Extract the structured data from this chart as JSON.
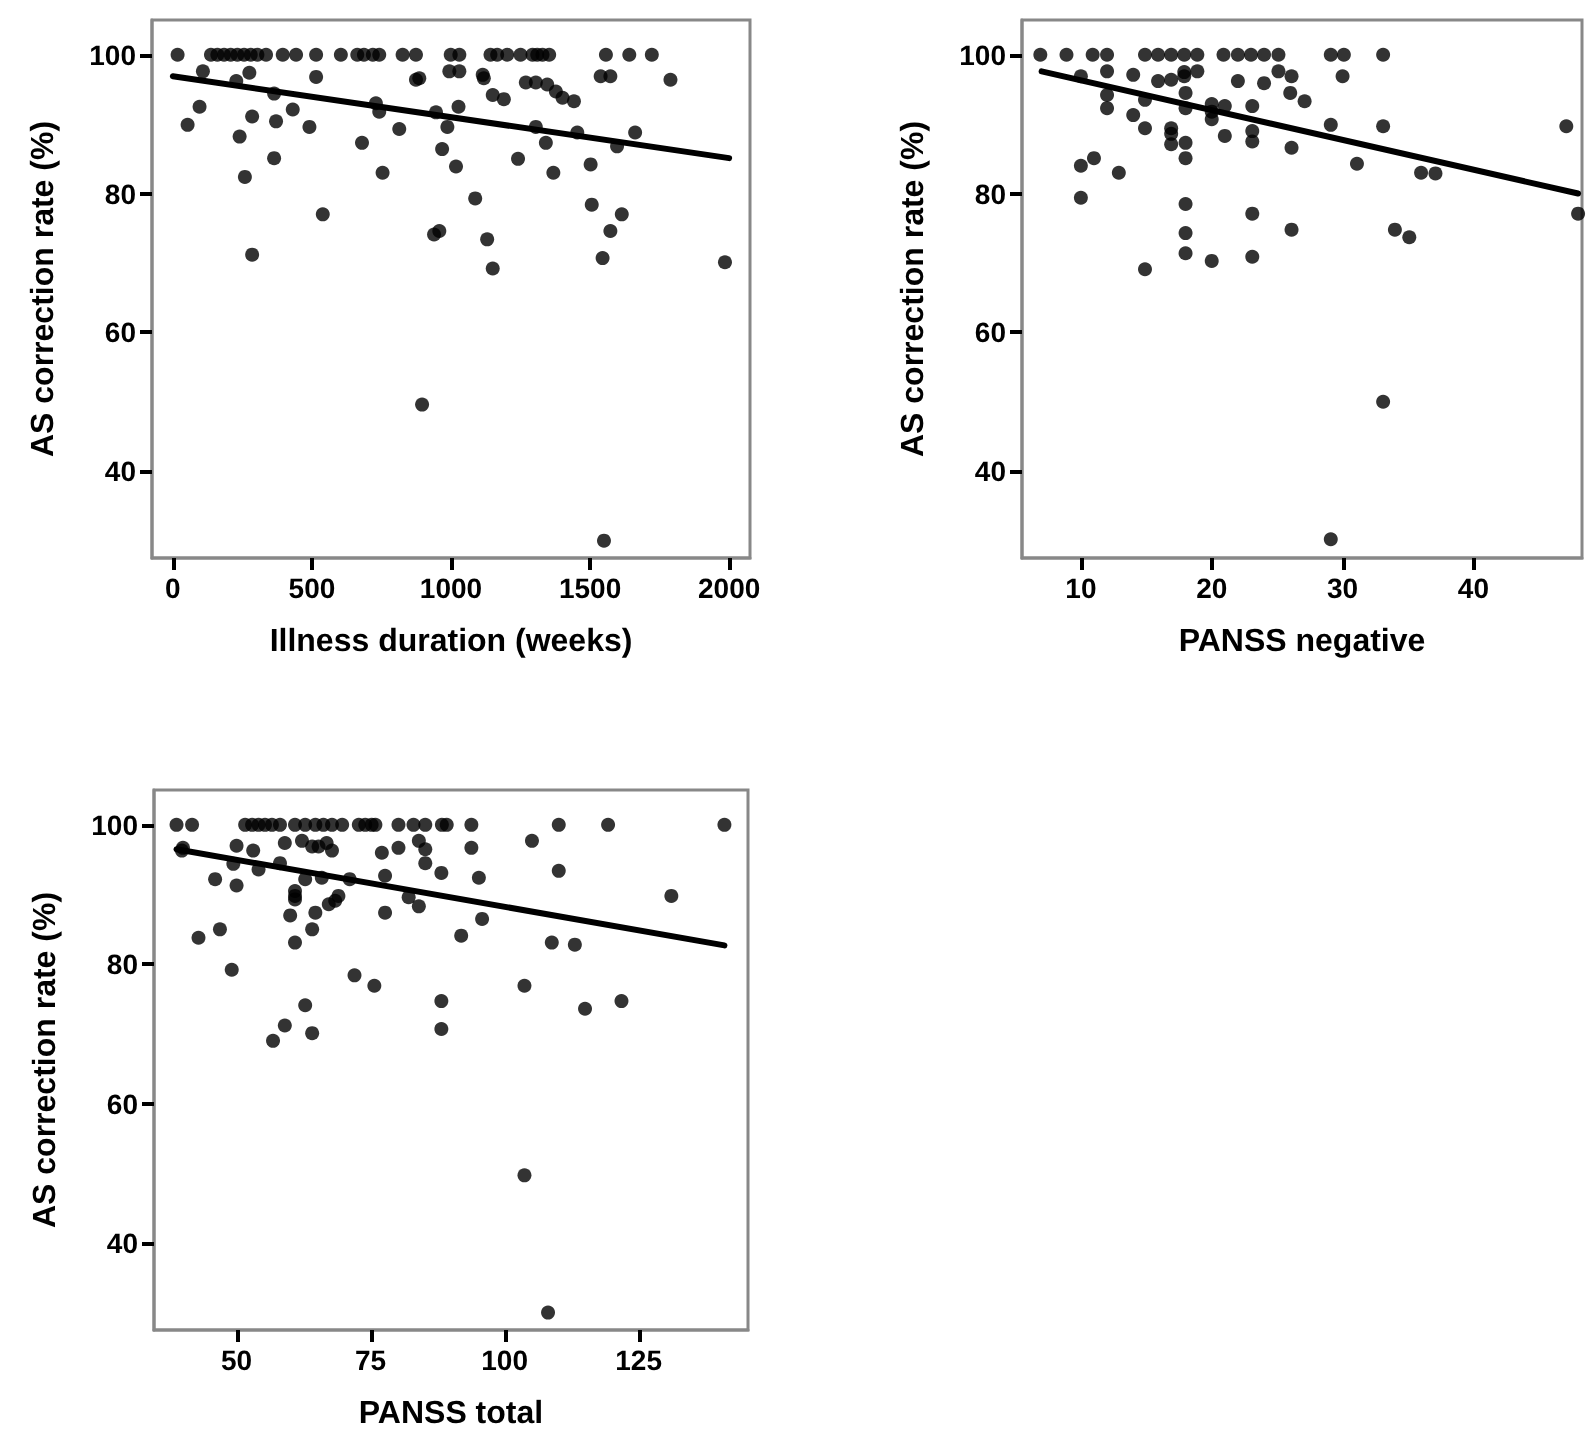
{
  "chart_data": [
    {
      "type": "scatter",
      "xlabel": "Illness duration (weeks)",
      "ylabel": "AS correction rate (%)",
      "xlim": [
        -75,
        2075
      ],
      "ylim": [
        27.5,
        105
      ],
      "xticks": [
        0,
        500,
        1000,
        1500,
        2000
      ],
      "yticks": [
        40,
        60,
        80,
        100
      ],
      "grid": false,
      "series": [
        {
          "marker": "circle",
          "color": "#000000",
          "x": [
            17,
            137,
            160,
            184,
            208,
            232,
            256,
            280,
            304,
            335,
            395,
            443,
            515,
            604,
            663,
            687,
            719,
            742,
            826,
            874,
            999,
            1030,
            1142,
            1166,
            1202,
            1250,
            1293,
            1310,
            1329,
            1353,
            1557,
            1641,
            1722,
            108,
            275,
            228,
            515,
            886,
            874,
            994,
            1030,
            1114,
            1118,
            1150,
            1190,
            1269,
            1305,
            1346,
            1377,
            1401,
            1442,
            1538,
            1573,
            1789,
            53,
            96,
            240,
            285,
            371,
            431,
            491,
            364,
            259,
            364,
            285,
            539,
            680,
            730,
            742,
            754,
            814,
            946,
            987,
            1027,
            968,
            1018,
            896,
            939,
            958,
            1087,
            1130,
            1150,
            1241,
            1305,
            1341,
            1368,
            1454,
            1502,
            1506,
            1545,
            1573,
            1614,
            1597,
            1662,
            1550,
            1985
          ],
          "values": [
            100,
            100,
            100,
            100,
            100,
            100,
            100,
            100,
            100,
            100,
            100,
            100,
            100,
            100,
            100,
            100,
            100,
            100,
            100,
            100,
            100,
            100,
            100,
            100,
            100,
            100,
            100,
            100,
            100,
            100,
            100,
            100,
            100,
            97.6,
            97.4,
            96.2,
            96.8,
            96.6,
            96.4,
            97.6,
            97.6,
            97.1,
            96.6,
            94.2,
            93.6,
            96,
            96,
            95.7,
            94.7,
            93.8,
            93.3,
            96.9,
            96.9,
            96.4,
            89.9,
            92.5,
            88.2,
            91.1,
            90.4,
            92.1,
            89.6,
            94.4,
            82.4,
            85.1,
            71.2,
            77,
            87.3,
            93,
            91.8,
            83,
            89.3,
            91.7,
            89.6,
            92.5,
            86.4,
            83.9,
            49.6,
            74.1,
            74.6,
            79.3,
            73.4,
            69.2,
            85,
            89.6,
            87.3,
            83,
            88.8,
            84.2,
            78.4,
            70.7,
            74.6,
            77,
            86.8,
            88.8,
            30,
            70.1
          ]
        },
        {
          "type": "line",
          "color": "#000000",
          "line_style": "solid",
          "x": [
            0,
            2000
          ],
          "values": [
            96.9,
            85.1
          ]
        }
      ]
    },
    {
      "type": "scatter",
      "xlabel": "PANSS negative",
      "ylabel": "AS correction rate (%)",
      "xlim": [
        5.5,
        48.3
      ],
      "ylim": [
        27.5,
        105
      ],
      "xticks": [
        10,
        20,
        30,
        40
      ],
      "yticks": [
        40,
        60,
        80,
        100
      ],
      "grid": false,
      "series": [
        {
          "marker": "circle",
          "color": "#000000",
          "x": [
            6.9,
            8.9,
            10.9,
            12,
            14.9,
            15.9,
            16.9,
            17.9,
            18.9,
            20.9,
            22,
            23,
            24,
            25.1,
            29.1,
            30.1,
            33.1,
            10,
            12,
            12,
            12,
            14,
            14,
            15.9,
            16.9,
            17.9,
            17.9,
            18.9,
            14.9,
            14.9,
            16.9,
            16.9,
            16.9,
            18,
            18,
            18,
            18,
            18,
            18,
            18,
            20,
            20,
            20,
            21,
            21,
            22,
            23.1,
            23.1,
            23.1,
            24,
            25.1,
            26.1,
            26,
            27.1,
            26.1,
            23.1,
            26.1,
            23.1,
            20,
            14.9,
            10,
            10,
            11,
            12.9,
            29.1,
            30,
            31.1,
            33.1,
            33.1,
            29.1,
            34,
            35.1,
            36,
            37.1,
            47.1,
            48
          ],
          "values": [
            100,
            100,
            100,
            100,
            100,
            100,
            100,
            100,
            100,
            100,
            100,
            100,
            100,
            100,
            100,
            100,
            100,
            96.9,
            97.6,
            94.2,
            92.3,
            97.1,
            91.3,
            96.2,
            96.4,
            96.9,
            97.5,
            97.6,
            93.5,
            89.4,
            89.4,
            88.6,
            87.1,
            94.5,
            92.3,
            87.3,
            85.1,
            78.5,
            74.3,
            71.4,
            92.9,
            91.8,
            90.7,
            92.6,
            88.3,
            96.2,
            92.6,
            89,
            87.5,
            95.9,
            97.6,
            96.9,
            94.5,
            93.3,
            86.6,
            77.1,
            74.8,
            70.9,
            70.3,
            69.1,
            84,
            79.4,
            85.1,
            83,
            89.9,
            96.9,
            84.3,
            89.7,
            50,
            30.2,
            74.8,
            73.7,
            83,
            82.9,
            89.7,
            77.1
          ]
        },
        {
          "type": "line",
          "color": "#000000",
          "line_style": "solid",
          "x": [
            7,
            48
          ],
          "values": [
            97.6,
            80
          ]
        }
      ]
    },
    {
      "type": "scatter",
      "xlabel": "PANSS total",
      "ylabel": "AS correction rate (%)",
      "xlim": [
        34.6,
        145.4
      ],
      "ylim": [
        27.5,
        105
      ],
      "xticks": [
        50,
        75,
        100,
        125
      ],
      "yticks": [
        40,
        60,
        80,
        100
      ],
      "grid": false,
      "series": [
        {
          "marker": "circle",
          "color": "#000000",
          "x": [
            38.8,
            41.7,
            51.6,
            52.9,
            54.1,
            55.3,
            56.6,
            58.1,
            60.9,
            62.8,
            64.7,
            66.2,
            67.8,
            69.7,
            72.8,
            74,
            75.2,
            75.9,
            80.2,
            83,
            85.2,
            88.3,
            89.2,
            93.8,
            110.1,
            119.3,
            141,
            40,
            39.8,
            50,
            53.1,
            59,
            62.2,
            64.1,
            65.3,
            66.8,
            67.8,
            49.4,
            54.1,
            58.1,
            62.8,
            65.9,
            71.1,
            60.9,
            60.9,
            60.9,
            60,
            64.7,
            64.1,
            60.9,
            67.2,
            68.4,
            69,
            77.1,
            80.2,
            84,
            85.2,
            85.2,
            77.7,
            77.7,
            82.1,
            84,
            88.2,
            93.8,
            95.2,
            95.8,
            91.9,
            105.1,
            110.1,
            131.1,
            108.8,
            113.1,
            42.9,
            46.9,
            46,
            50,
            49.1,
            72,
            75.7,
            88.2,
            88.2,
            103.7,
            115,
            121.8,
            62.8,
            59,
            56.8,
            64.1,
            103.7,
            108.1
          ],
          "values": [
            100,
            100,
            100,
            100,
            100,
            100,
            100,
            100,
            100,
            100,
            100,
            100,
            100,
            100,
            100,
            100,
            100,
            100,
            100,
            100,
            100,
            100,
            100,
            100,
            100,
            100,
            100,
            96.7,
            96.3,
            97,
            96.3,
            97.4,
            97.7,
            96.9,
            96.9,
            97.4,
            96.3,
            94.4,
            93.6,
            94.5,
            92.2,
            92.4,
            92.2,
            90.5,
            89.8,
            89.3,
            87,
            87.4,
            85,
            83.1,
            88.6,
            89.1,
            89.8,
            96,
            96.7,
            97.7,
            96.5,
            94.5,
            92.7,
            87.4,
            89.6,
            88.3,
            93.1,
            96.7,
            92.4,
            86.5,
            84.1,
            97.7,
            93.4,
            89.8,
            83.1,
            82.8,
            83.8,
            85,
            92.2,
            91.3,
            79.2,
            78.4,
            76.9,
            74.7,
            70.7,
            76.9,
            73.6,
            74.7,
            74.1,
            71.2,
            69,
            70.1,
            49.7,
            30
          ]
        },
        {
          "type": "line",
          "color": "#000000",
          "line_style": "solid",
          "x": [
            38.8,
            141
          ],
          "values": [
            96.5,
            82.7
          ]
        }
      ]
    }
  ]
}
